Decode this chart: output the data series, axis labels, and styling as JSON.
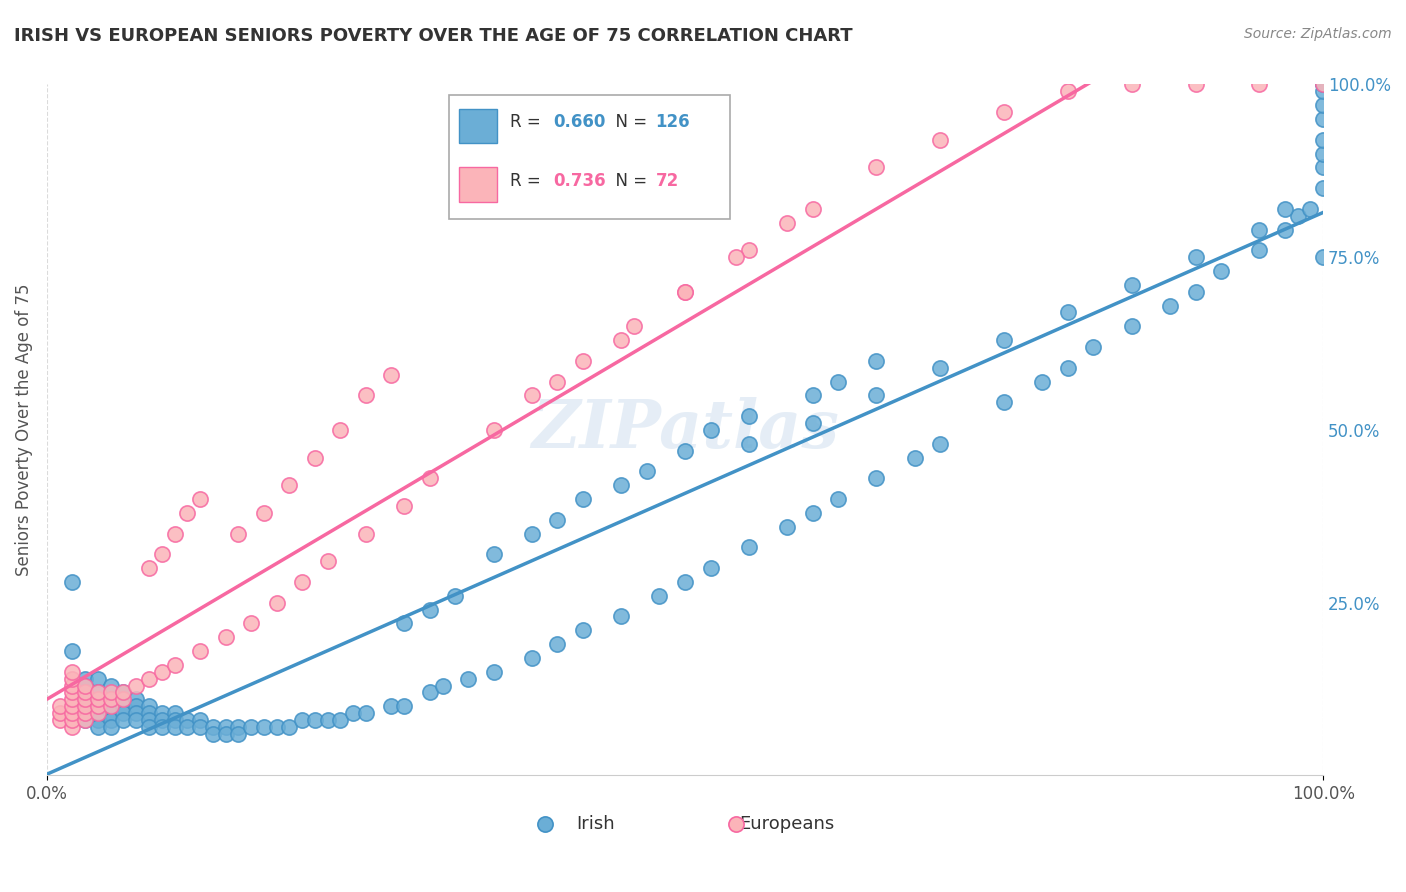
{
  "title": "IRISH VS EUROPEAN SENIORS POVERTY OVER THE AGE OF 75 CORRELATION CHART",
  "source": "Source: ZipAtlas.com",
  "ylabel": "Seniors Poverty Over the Age of 75",
  "xlabel": "",
  "watermark": "ZIPatlas",
  "xlim": [
    0.0,
    1.0
  ],
  "ylim": [
    0.0,
    1.0
  ],
  "x_ticks": [
    0.0,
    1.0
  ],
  "x_tick_labels": [
    "0.0%",
    "100.0%"
  ],
  "y_tick_labels": [
    "0.0%",
    "25.0%",
    "50.0%",
    "75.0%",
    "100.0%"
  ],
  "legend_irish_R": "0.660",
  "legend_irish_N": "126",
  "legend_euro_R": "0.736",
  "legend_euro_N": "72",
  "irish_color": "#6baed6",
  "irish_edge_color": "#4292c6",
  "euro_color": "#fbb4b9",
  "euro_edge_color": "#f768a1",
  "irish_line_color": "#4292c6",
  "euro_line_color": "#f768a1",
  "background_color": "#ffffff",
  "grid_color": "#cccccc",
  "title_color": "#333333",
  "irish_x": [
    0.02,
    0.02,
    0.03,
    0.03,
    0.03,
    0.03,
    0.03,
    0.03,
    0.03,
    0.04,
    0.04,
    0.04,
    0.04,
    0.04,
    0.04,
    0.05,
    0.05,
    0.05,
    0.05,
    0.05,
    0.05,
    0.06,
    0.06,
    0.06,
    0.06,
    0.07,
    0.07,
    0.07,
    0.07,
    0.08,
    0.08,
    0.08,
    0.08,
    0.09,
    0.09,
    0.09,
    0.1,
    0.1,
    0.1,
    0.11,
    0.11,
    0.12,
    0.12,
    0.13,
    0.13,
    0.14,
    0.14,
    0.15,
    0.15,
    0.16,
    0.17,
    0.18,
    0.19,
    0.2,
    0.21,
    0.22,
    0.23,
    0.24,
    0.25,
    0.27,
    0.28,
    0.3,
    0.31,
    0.33,
    0.35,
    0.38,
    0.4,
    0.42,
    0.45,
    0.48,
    0.5,
    0.52,
    0.55,
    0.58,
    0.6,
    0.62,
    0.65,
    0.68,
    0.7,
    0.75,
    0.78,
    0.8,
    0.82,
    0.85,
    0.88,
    0.9,
    0.92,
    0.95,
    0.97,
    0.98,
    0.99,
    1.0,
    1.0,
    1.0,
    1.0,
    1.0,
    1.0,
    1.0,
    1.0,
    1.0,
    0.45,
    0.47,
    0.5,
    0.52,
    0.55,
    0.38,
    0.4,
    0.42,
    0.35,
    0.6,
    0.62,
    0.65,
    0.28,
    0.3,
    0.32,
    0.55,
    0.6,
    0.65,
    0.7,
    0.75,
    0.8,
    0.85,
    0.9,
    0.95,
    0.97,
    1.0
  ],
  "irish_y": [
    0.28,
    0.18,
    0.14,
    0.13,
    0.12,
    0.11,
    0.1,
    0.09,
    0.08,
    0.14,
    0.12,
    0.1,
    0.09,
    0.08,
    0.07,
    0.13,
    0.11,
    0.1,
    0.09,
    0.08,
    0.07,
    0.12,
    0.1,
    0.09,
    0.08,
    0.11,
    0.1,
    0.09,
    0.08,
    0.1,
    0.09,
    0.08,
    0.07,
    0.09,
    0.08,
    0.07,
    0.09,
    0.08,
    0.07,
    0.08,
    0.07,
    0.08,
    0.07,
    0.07,
    0.06,
    0.07,
    0.06,
    0.07,
    0.06,
    0.07,
    0.07,
    0.07,
    0.07,
    0.08,
    0.08,
    0.08,
    0.08,
    0.09,
    0.09,
    0.1,
    0.1,
    0.12,
    0.13,
    0.14,
    0.15,
    0.17,
    0.19,
    0.21,
    0.23,
    0.26,
    0.28,
    0.3,
    0.33,
    0.36,
    0.38,
    0.4,
    0.43,
    0.46,
    0.48,
    0.54,
    0.57,
    0.59,
    0.62,
    0.65,
    0.68,
    0.7,
    0.73,
    0.76,
    0.79,
    0.81,
    0.82,
    0.85,
    0.88,
    0.9,
    0.92,
    0.95,
    0.97,
    0.99,
    1.0,
    0.75,
    0.42,
    0.44,
    0.47,
    0.5,
    0.52,
    0.35,
    0.37,
    0.4,
    0.32,
    0.55,
    0.57,
    0.6,
    0.22,
    0.24,
    0.26,
    0.48,
    0.51,
    0.55,
    0.59,
    0.63,
    0.67,
    0.71,
    0.75,
    0.79,
    0.82,
    1.0
  ],
  "euro_x": [
    0.01,
    0.01,
    0.01,
    0.02,
    0.02,
    0.02,
    0.02,
    0.02,
    0.02,
    0.02,
    0.02,
    0.02,
    0.03,
    0.03,
    0.03,
    0.03,
    0.03,
    0.03,
    0.04,
    0.04,
    0.04,
    0.04,
    0.05,
    0.05,
    0.05,
    0.06,
    0.06,
    0.07,
    0.08,
    0.09,
    0.1,
    0.12,
    0.14,
    0.16,
    0.18,
    0.2,
    0.22,
    0.25,
    0.28,
    0.3,
    0.35,
    0.4,
    0.45,
    0.5,
    0.55,
    0.6,
    0.65,
    0.7,
    0.75,
    0.8,
    0.85,
    0.9,
    0.95,
    1.0,
    0.15,
    0.17,
    0.19,
    0.21,
    0.23,
    0.38,
    0.42,
    0.46,
    0.5,
    0.54,
    0.58,
    0.08,
    0.09,
    0.1,
    0.11,
    0.12,
    0.25,
    0.27
  ],
  "euro_y": [
    0.08,
    0.09,
    0.1,
    0.07,
    0.08,
    0.09,
    0.1,
    0.11,
    0.12,
    0.13,
    0.14,
    0.15,
    0.08,
    0.09,
    0.1,
    0.11,
    0.12,
    0.13,
    0.09,
    0.1,
    0.11,
    0.12,
    0.1,
    0.11,
    0.12,
    0.11,
    0.12,
    0.13,
    0.14,
    0.15,
    0.16,
    0.18,
    0.2,
    0.22,
    0.25,
    0.28,
    0.31,
    0.35,
    0.39,
    0.43,
    0.5,
    0.57,
    0.63,
    0.7,
    0.76,
    0.82,
    0.88,
    0.92,
    0.96,
    0.99,
    1.0,
    1.0,
    1.0,
    1.0,
    0.35,
    0.38,
    0.42,
    0.46,
    0.5,
    0.55,
    0.6,
    0.65,
    0.7,
    0.75,
    0.8,
    0.3,
    0.32,
    0.35,
    0.38,
    0.4,
    0.55,
    0.58
  ]
}
